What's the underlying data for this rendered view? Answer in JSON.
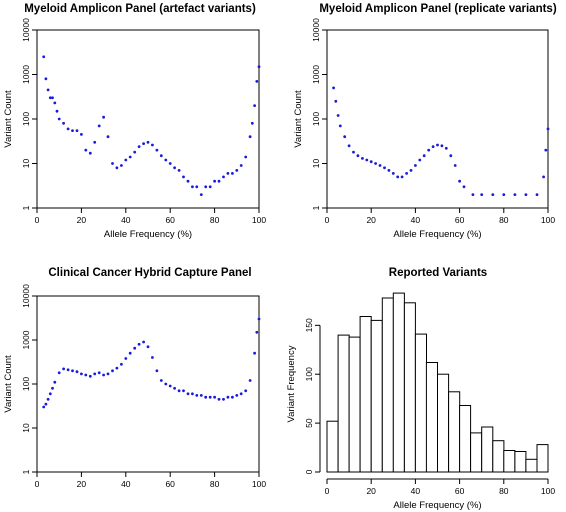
{
  "chart_data": [
    {
      "type": "scatter",
      "title": "Myeloid Amplicon Panel (artefact variants)",
      "xlabel": "Allele Frequency (%)",
      "ylabel": "Variant Count",
      "xlim": [
        0,
        100
      ],
      "ylim": [
        1,
        10000
      ],
      "yscale": "log",
      "xticks": [
        0,
        20,
        40,
        60,
        80,
        100
      ],
      "yticks": [
        1,
        10,
        100,
        1000,
        10000
      ],
      "color": "#1a1adc",
      "x": [
        3,
        4,
        5,
        6,
        7,
        8,
        9,
        10,
        12,
        14,
        16,
        18,
        20,
        22,
        24,
        26,
        28,
        30,
        32,
        34,
        36,
        38,
        40,
        42,
        44,
        46,
        48,
        50,
        52,
        54,
        56,
        58,
        60,
        62,
        64,
        66,
        68,
        70,
        72,
        74,
        76,
        78,
        80,
        82,
        84,
        86,
        88,
        90,
        92,
        94,
        96,
        97,
        98,
        99,
        100
      ],
      "y": [
        2500,
        800,
        450,
        300,
        300,
        230,
        150,
        100,
        80,
        60,
        55,
        55,
        45,
        20,
        17,
        30,
        70,
        110,
        40,
        10,
        8,
        9,
        12,
        14,
        18,
        24,
        28,
        30,
        26,
        20,
        15,
        12,
        10,
        8,
        7,
        5,
        4,
        3,
        3,
        2,
        3,
        3,
        4,
        4,
        5,
        6,
        6,
        7,
        9,
        14,
        40,
        80,
        200,
        700,
        1500
      ]
    },
    {
      "type": "scatter",
      "title": "Myeloid Amplicon Panel (replicate variants)",
      "xlabel": "Allele Frequency (%)",
      "ylabel": "Variant Count",
      "xlim": [
        0,
        100
      ],
      "ylim": [
        1,
        10000
      ],
      "yscale": "log",
      "xticks": [
        0,
        20,
        40,
        60,
        80,
        100
      ],
      "yticks": [
        1,
        10,
        100,
        1000,
        10000
      ],
      "color": "#1a1adc",
      "x": [
        3,
        4,
        5,
        6,
        8,
        10,
        12,
        14,
        16,
        18,
        20,
        22,
        24,
        26,
        28,
        30,
        32,
        34,
        36,
        38,
        40,
        42,
        44,
        46,
        48,
        50,
        52,
        54,
        56,
        58,
        60,
        62,
        66,
        70,
        75,
        80,
        85,
        90,
        95,
        98,
        99,
        100
      ],
      "y": [
        500,
        250,
        120,
        70,
        40,
        25,
        18,
        15,
        13,
        12,
        11,
        10,
        9,
        8,
        7,
        6,
        5,
        5,
        6,
        7,
        9,
        12,
        15,
        20,
        24,
        26,
        25,
        22,
        15,
        9,
        4,
        3,
        2,
        2,
        2,
        2,
        2,
        2,
        2,
        5,
        20,
        60
      ]
    },
    {
      "type": "scatter",
      "title": "Clinical Cancer Hybrid Capture Panel",
      "xlabel": "",
      "ylabel": "Variant Count",
      "xlim": [
        0,
        100
      ],
      "ylim": [
        1,
        10000
      ],
      "yscale": "log",
      "xticks": [
        0,
        20,
        40,
        60,
        80,
        100
      ],
      "yticks": [
        1,
        10,
        100,
        1000,
        10000
      ],
      "color": "#1a1adc",
      "x": [
        3,
        4,
        5,
        6,
        7,
        8,
        10,
        12,
        14,
        16,
        18,
        20,
        22,
        24,
        26,
        28,
        30,
        32,
        34,
        36,
        38,
        40,
        42,
        44,
        46,
        48,
        50,
        52,
        54,
        56,
        58,
        60,
        62,
        64,
        66,
        68,
        70,
        72,
        74,
        76,
        78,
        80,
        82,
        84,
        86,
        88,
        90,
        92,
        94,
        96,
        98,
        99,
        100
      ],
      "y": [
        30,
        35,
        45,
        60,
        80,
        110,
        180,
        220,
        210,
        200,
        190,
        170,
        160,
        150,
        170,
        180,
        160,
        170,
        200,
        230,
        280,
        380,
        500,
        650,
        800,
        900,
        700,
        400,
        200,
        120,
        100,
        90,
        80,
        70,
        70,
        60,
        60,
        55,
        55,
        50,
        50,
        50,
        45,
        45,
        50,
        50,
        55,
        60,
        70,
        120,
        500,
        1500,
        3000
      ]
    },
    {
      "type": "bar",
      "title": "Reported Variants",
      "xlabel": "Allele Frequency (%)",
      "ylabel": "Variant Frequency",
      "xlim": [
        0,
        100
      ],
      "ylim": [
        0,
        180
      ],
      "xticks": [
        0,
        20,
        40,
        60,
        80,
        100
      ],
      "yticks": [
        0,
        50,
        100,
        150
      ],
      "bin_edges": [
        0,
        5,
        10,
        15,
        20,
        25,
        30,
        35,
        40,
        45,
        50,
        55,
        60,
        65,
        70,
        75,
        80,
        85,
        90,
        95,
        100
      ],
      "values": [
        52,
        140,
        138,
        159,
        155,
        178,
        183,
        173,
        141,
        112,
        100,
        82,
        68,
        40,
        46,
        32,
        22,
        21,
        13,
        28
      ]
    }
  ]
}
